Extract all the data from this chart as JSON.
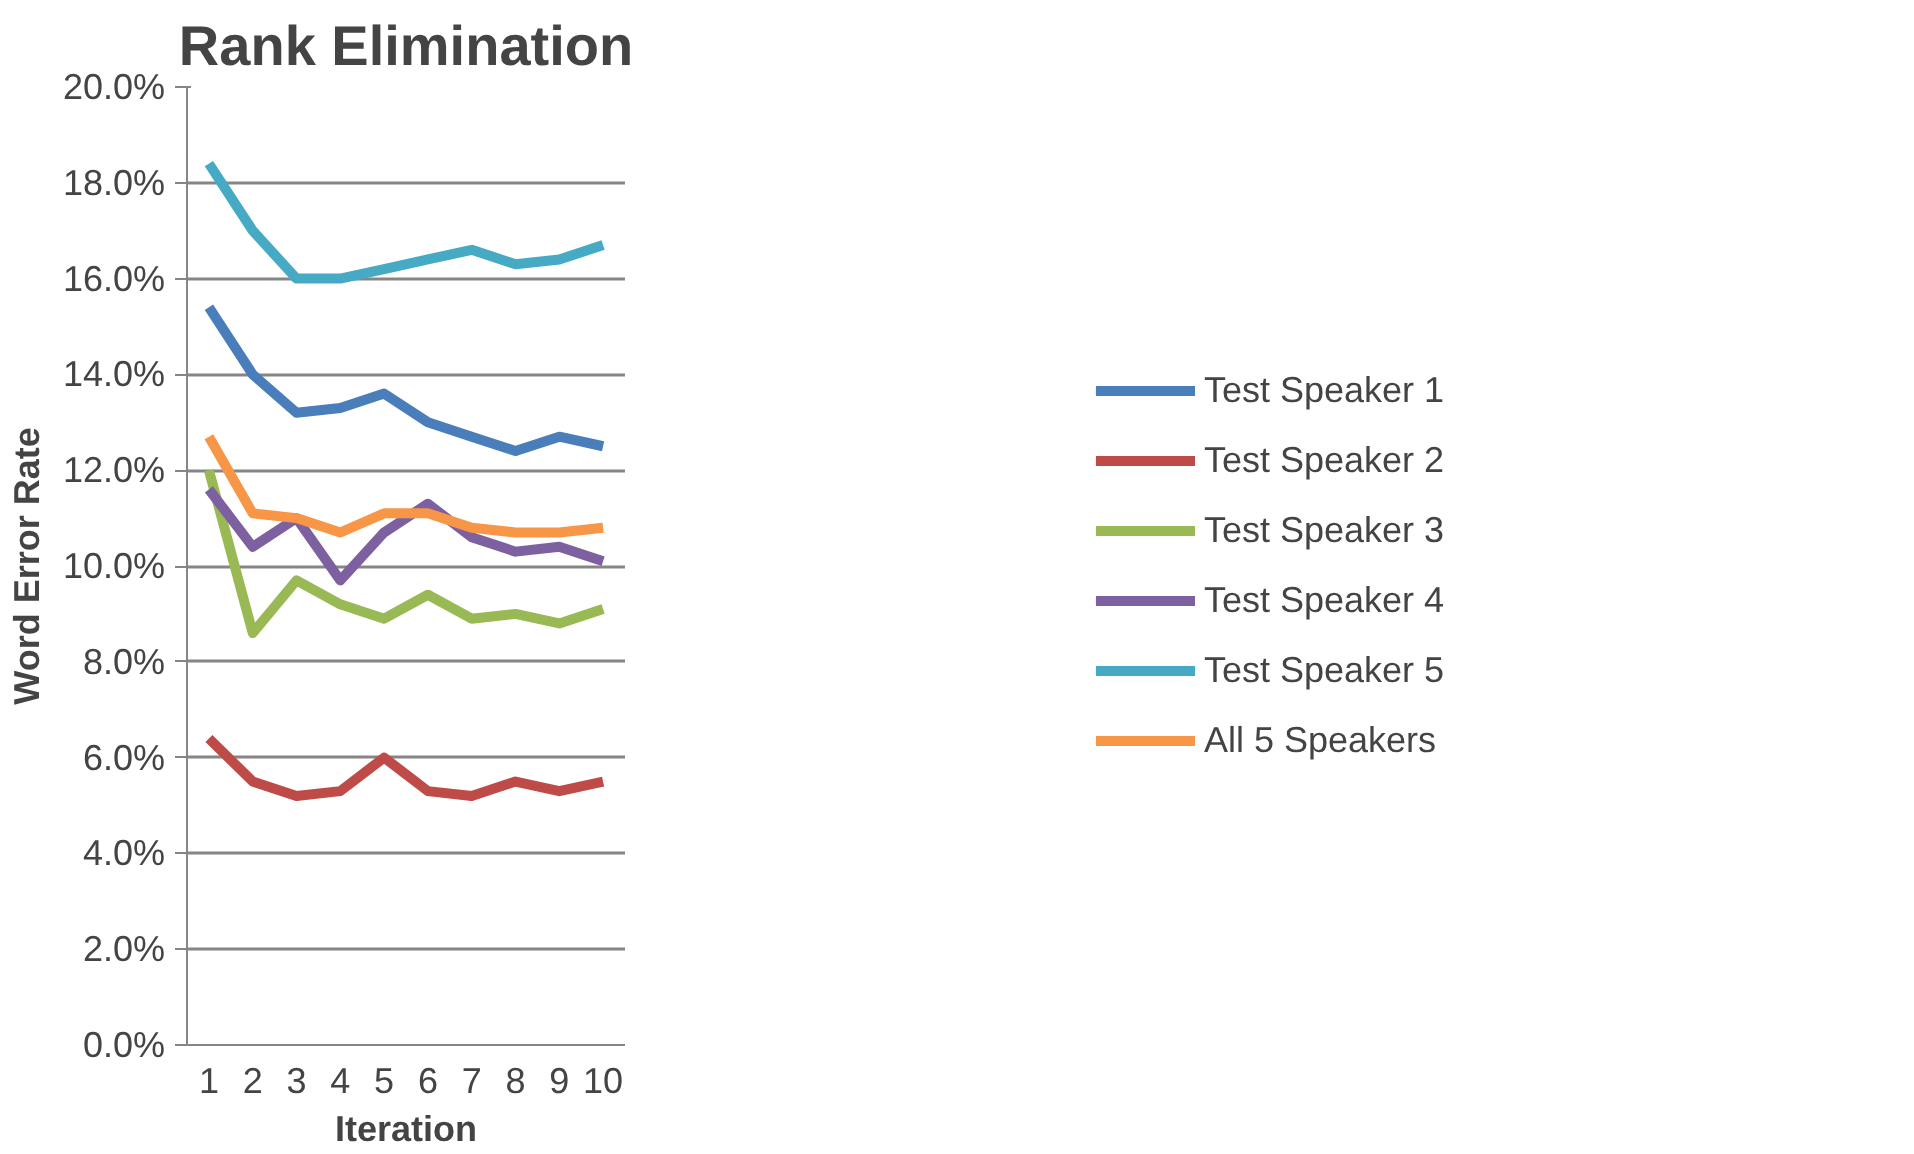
{
  "chart_data": {
    "type": "line",
    "title": "Rank Elimination",
    "xlabel": "Iteration",
    "ylabel": "Word Error Rate",
    "categories": [
      "1",
      "2",
      "3",
      "4",
      "5",
      "6",
      "7",
      "8",
      "9",
      "10"
    ],
    "series": [
      {
        "name": "Test Speaker 1",
        "color": "#4a7ebb",
        "values": [
          15.4,
          14.0,
          13.2,
          13.3,
          13.6,
          13.0,
          12.7,
          12.4,
          12.7,
          12.5
        ]
      },
      {
        "name": "Test Speaker 2",
        "color": "#be4b48",
        "values": [
          6.4,
          5.5,
          5.2,
          5.3,
          6.0,
          5.3,
          5.2,
          5.5,
          5.3,
          5.5
        ]
      },
      {
        "name": "Test Speaker 3",
        "color": "#98b954",
        "values": [
          12.0,
          8.6,
          9.7,
          9.2,
          8.9,
          9.4,
          8.9,
          9.0,
          8.8,
          9.1
        ]
      },
      {
        "name": "Test Speaker 4",
        "color": "#7d60a0",
        "values": [
          11.6,
          10.4,
          11.0,
          9.7,
          10.7,
          11.3,
          10.6,
          10.3,
          10.4,
          10.1
        ]
      },
      {
        "name": "Test Speaker 5",
        "color": "#46aac5",
        "values": [
          18.4,
          17.0,
          16.0,
          16.0,
          16.2,
          16.4,
          16.6,
          16.3,
          16.4,
          16.7
        ]
      },
      {
        "name": "All 5 Speakers",
        "color": "#f79646",
        "values": [
          12.7,
          11.1,
          11.0,
          10.7,
          11.1,
          11.1,
          10.8,
          10.7,
          10.7,
          10.8
        ]
      }
    ],
    "ylim": [
      0,
      20
    ],
    "yticks": [
      {
        "value": 0,
        "label": "0.0%"
      },
      {
        "value": 2,
        "label": "2.0%"
      },
      {
        "value": 4,
        "label": "4.0%"
      },
      {
        "value": 6,
        "label": "6.0%"
      },
      {
        "value": 8,
        "label": "8.0%"
      },
      {
        "value": 10,
        "label": "10.0%"
      },
      {
        "value": 12,
        "label": "12.0%"
      },
      {
        "value": 14,
        "label": "14.0%"
      },
      {
        "value": 16,
        "label": "16.0%"
      },
      {
        "value": 18,
        "label": "18.0%"
      },
      {
        "value": 20,
        "label": "20.0%"
      }
    ],
    "grid": "y",
    "legend": "right",
    "marker": "none",
    "line_style": "solid"
  }
}
